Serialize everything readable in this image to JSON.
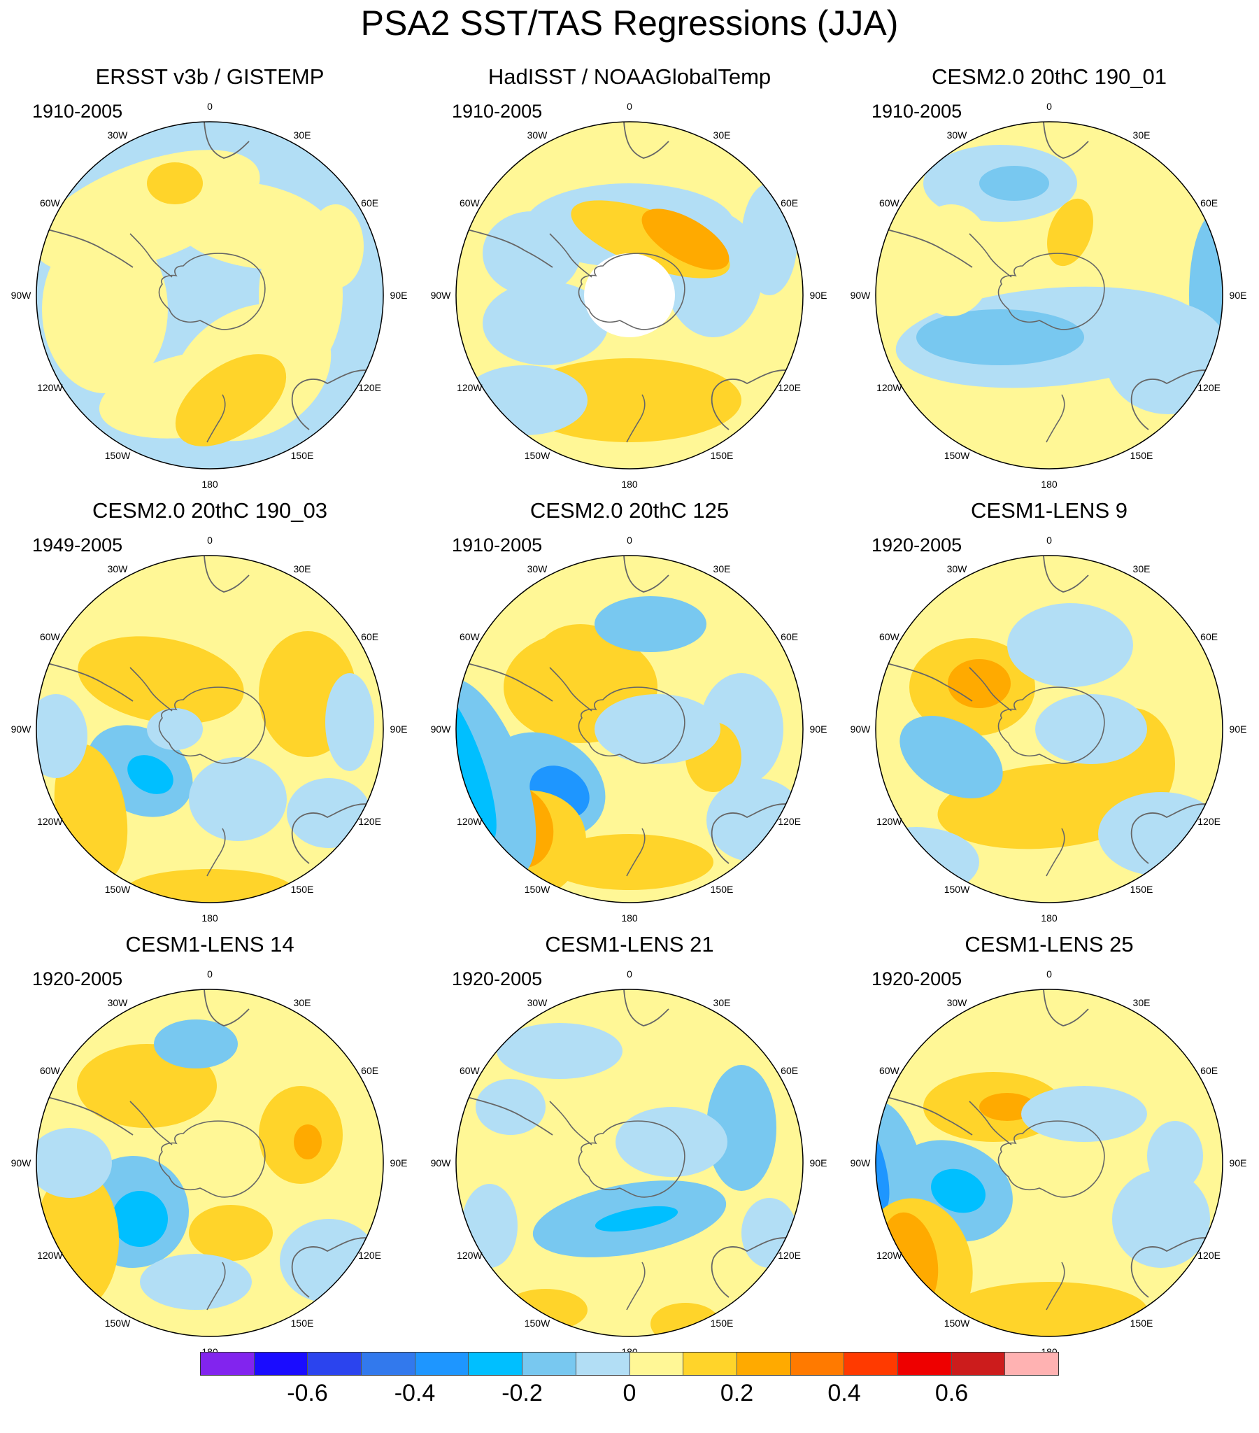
{
  "title": "PSA2 SST/TAS Regressions (JJA)",
  "longitude_labels": [
    "0",
    "30E",
    "60E",
    "90E",
    "120E",
    "150E",
    "180",
    "150W",
    "120W",
    "90W",
    "60W",
    "30W"
  ],
  "panels": [
    {
      "title": "ERSST v3b / GISTEMP",
      "period": "1910-2005",
      "pattern": "obs1"
    },
    {
      "title": "HadISST / NOAAGlobalTemp",
      "period": "1910-2005",
      "pattern": "obs2"
    },
    {
      "title": "CESM2.0 20thC 190_01",
      "period": "1910-2005",
      "pattern": "m1"
    },
    {
      "title": "CESM2.0 20thC 190_03",
      "period": "1949-2005",
      "pattern": "m2"
    },
    {
      "title": "CESM2.0 20thC 125",
      "period": "1910-2005",
      "pattern": "m3"
    },
    {
      "title": "CESM1-LENS 9",
      "period": "1920-2005",
      "pattern": "m4"
    },
    {
      "title": "CESM1-LENS 14",
      "period": "1920-2005",
      "pattern": "m5"
    },
    {
      "title": "CESM1-LENS 21",
      "period": "1920-2005",
      "pattern": "m6"
    },
    {
      "title": "CESM1-LENS 25",
      "period": "1920-2005",
      "pattern": "m7"
    }
  ],
  "colorbar": {
    "colors": [
      "#8224ee",
      "#1a0cff",
      "#2b44ee",
      "#3279ed",
      "#1e96ff",
      "#00bfff",
      "#78c8f0",
      "#b2def5",
      "#fff796",
      "#ffd42a",
      "#ffaa00",
      "#ff7a00",
      "#ff3a00",
      "#ee0000",
      "#cc1c1c",
      "#ffb2b2"
    ],
    "labels": [
      "-0.6",
      "-0.4",
      "-0.2",
      "0",
      "0.2",
      "0.4",
      "0.6"
    ]
  }
}
